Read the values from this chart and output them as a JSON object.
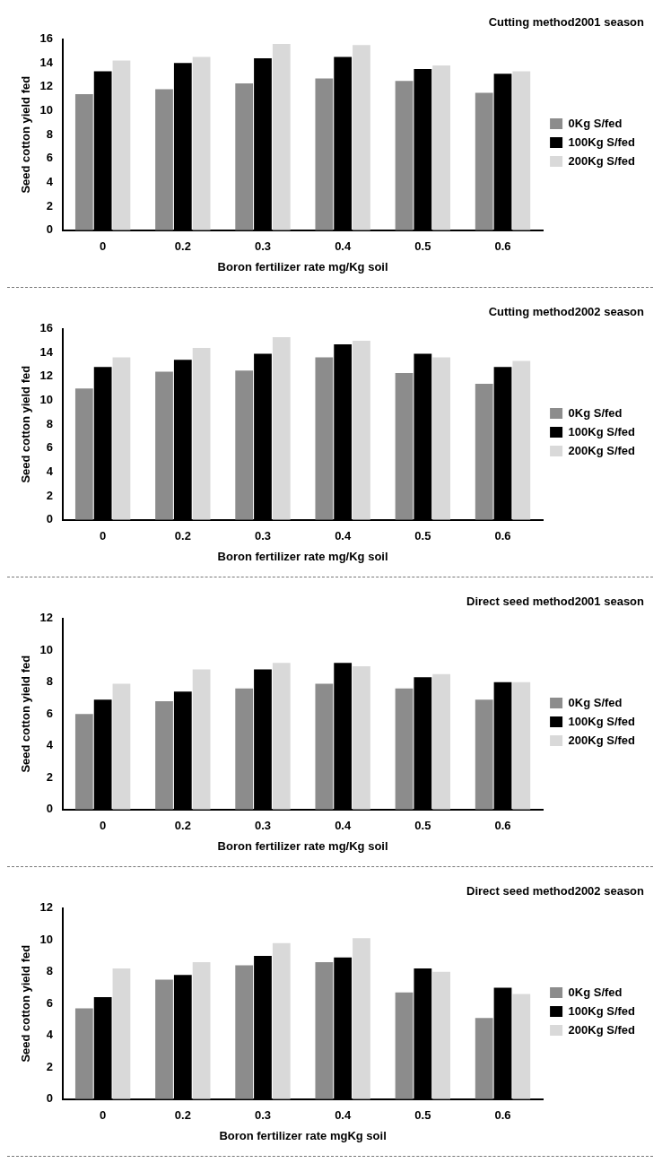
{
  "chart_data": [
    {
      "type": "bar",
      "title": "Cutting method2001 season",
      "xlabel": "Boron fertilizer rate mg/Kg soil",
      "ylabel": "Seed cotton yield fed",
      "categories": [
        "0",
        "0.2",
        "0.3",
        "0.4",
        "0.5",
        "0.6"
      ],
      "series": [
        {
          "name": "0Kg S/fed",
          "color": "#8c8c8c",
          "values": [
            11.4,
            11.8,
            12.3,
            12.7,
            12.5,
            11.5
          ]
        },
        {
          "name": "100Kg S/fed",
          "color": "#000000",
          "values": [
            13.3,
            14.0,
            14.4,
            14.5,
            13.5,
            13.1
          ]
        },
        {
          "name": "200Kg S/fed",
          "color": "#d9d9d9",
          "values": [
            14.2,
            14.5,
            15.6,
            15.5,
            13.8,
            13.3
          ]
        }
      ],
      "ylim": [
        0,
        16
      ],
      "yticks": [
        0,
        2,
        4,
        6,
        8,
        10,
        12,
        14,
        16
      ],
      "grid": false,
      "legend": "right"
    },
    {
      "type": "bar",
      "title": "Cutting method2002 season",
      "xlabel": "Boron fertilizer rate mg/Kg soil",
      "ylabel": "Seed cotton yield fed",
      "categories": [
        "0",
        "0.2",
        "0.3",
        "0.4",
        "0.5",
        "0.6"
      ],
      "series": [
        {
          "name": "0Kg S/fed",
          "color": "#8c8c8c",
          "values": [
            11.0,
            12.4,
            12.5,
            13.6,
            12.3,
            11.4
          ]
        },
        {
          "name": "100Kg S/fed",
          "color": "#000000",
          "values": [
            12.8,
            13.4,
            13.9,
            14.7,
            13.9,
            12.8
          ]
        },
        {
          "name": "200Kg S/fed",
          "color": "#d9d9d9",
          "values": [
            13.6,
            14.4,
            15.3,
            15.0,
            13.6,
            13.3
          ]
        }
      ],
      "ylim": [
        0,
        16
      ],
      "yticks": [
        0,
        2,
        4,
        6,
        8,
        10,
        12,
        14,
        16
      ],
      "grid": false,
      "legend": "right"
    },
    {
      "type": "bar",
      "title": "Direct seed method2001 season",
      "xlabel": "Boron fertilizer rate mg/Kg soil",
      "ylabel": "Seed cotton yield fed",
      "categories": [
        "0",
        "0.2",
        "0.3",
        "0.4",
        "0.5",
        "0.6"
      ],
      "series": [
        {
          "name": "0Kg S/fed",
          "color": "#8c8c8c",
          "values": [
            6.0,
            6.8,
            7.6,
            7.9,
            7.6,
            6.9
          ]
        },
        {
          "name": "100Kg S/fed",
          "color": "#000000",
          "values": [
            6.9,
            7.4,
            8.8,
            9.2,
            8.3,
            8.0
          ]
        },
        {
          "name": "200Kg S/fed",
          "color": "#d9d9d9",
          "values": [
            7.9,
            8.8,
            9.2,
            9.0,
            8.5,
            8.0
          ]
        }
      ],
      "ylim": [
        0,
        12
      ],
      "yticks": [
        0,
        2,
        4,
        6,
        8,
        10,
        12
      ],
      "grid": false,
      "legend": "right"
    },
    {
      "type": "bar",
      "title": "Direct seed method2002 season",
      "xlabel": "Boron fertilizer rate mgKg soil",
      "ylabel": "Seed cotton yield fed",
      "categories": [
        "0",
        "0.2",
        "0.3",
        "0.4",
        "0.5",
        "0.6"
      ],
      "series": [
        {
          "name": "0Kg S/fed",
          "color": "#8c8c8c",
          "values": [
            5.7,
            7.5,
            8.4,
            8.6,
            6.7,
            5.1
          ]
        },
        {
          "name": "100Kg S/fed",
          "color": "#000000",
          "values": [
            6.4,
            7.8,
            9.0,
            8.9,
            8.2,
            7.0
          ]
        },
        {
          "name": "200Kg S/fed",
          "color": "#d9d9d9",
          "values": [
            8.2,
            8.6,
            9.8,
            10.1,
            8.0,
            6.6
          ]
        }
      ],
      "ylim": [
        0,
        12
      ],
      "yticks": [
        0,
        2,
        4,
        6,
        8,
        10,
        12
      ],
      "grid": false,
      "legend": "right"
    }
  ]
}
